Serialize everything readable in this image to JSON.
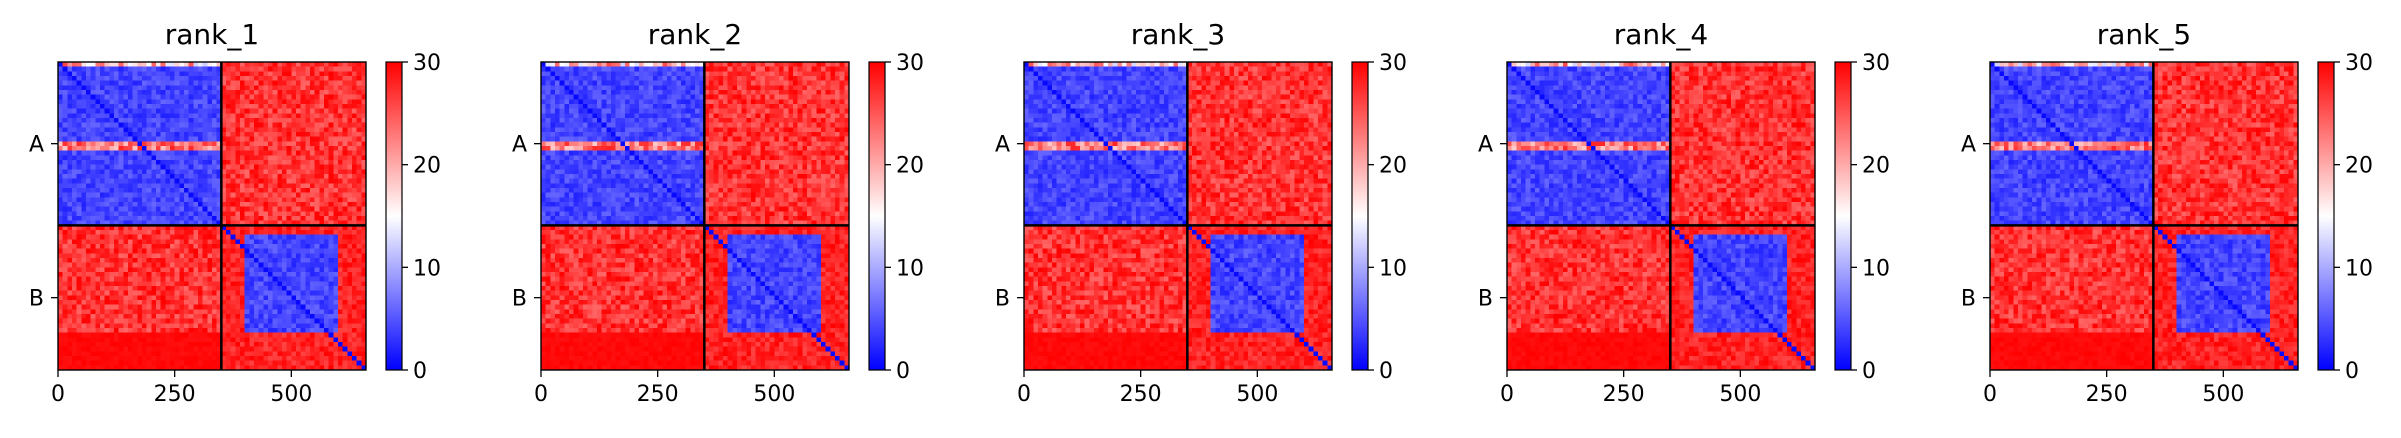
{
  "chart_data": [
    {
      "type": "heatmap",
      "title": "rank_1",
      "xlabel": "",
      "ylabel": "",
      "x_ticks": [
        0,
        250,
        500
      ],
      "xlim": [
        0,
        660
      ],
      "ylim": [
        660,
        0
      ],
      "y_tick_labels": [
        {
          "label": "A",
          "y": 175
        },
        {
          "label": "B",
          "y": 505
        }
      ],
      "chain_boundary": 350,
      "chain_A_length": 350,
      "chain_B_length": 310,
      "colorbar": {
        "min": 0,
        "max": 30,
        "ticks": [
          0,
          10,
          20,
          30
        ]
      },
      "blocks": [
        {
          "name": "A-A",
          "x": [
            0,
            350
          ],
          "y": [
            0,
            350
          ],
          "mean_value": 3,
          "note_value_high_rows": 30
        },
        {
          "name": "A-B",
          "x": [
            350,
            660
          ],
          "y": [
            0,
            350
          ],
          "mean_value": 29
        },
        {
          "name": "B-A",
          "x": [
            0,
            350
          ],
          "y": [
            350,
            660
          ],
          "mean_value": 29
        },
        {
          "name": "B-B",
          "x": [
            350,
            660
          ],
          "y": [
            350,
            660
          ],
          "mean_value": 28,
          "core_x": [
            400,
            600
          ],
          "core_y": [
            370,
            580
          ],
          "core_value": 3
        }
      ]
    },
    {
      "type": "heatmap",
      "title": "rank_2",
      "xlabel": "",
      "ylabel": "",
      "x_ticks": [
        0,
        250,
        500
      ],
      "xlim": [
        0,
        660
      ],
      "ylim": [
        660,
        0
      ],
      "y_tick_labels": [
        {
          "label": "A",
          "y": 175
        },
        {
          "label": "B",
          "y": 505
        }
      ],
      "chain_boundary": 350,
      "chain_A_length": 350,
      "chain_B_length": 310,
      "colorbar": {
        "min": 0,
        "max": 30,
        "ticks": [
          0,
          10,
          20,
          30
        ]
      },
      "blocks": [
        {
          "name": "A-A",
          "x": [
            0,
            350
          ],
          "y": [
            0,
            350
          ],
          "mean_value": 3,
          "note_value_high_rows": 30
        },
        {
          "name": "A-B",
          "x": [
            350,
            660
          ],
          "y": [
            0,
            350
          ],
          "mean_value": 29
        },
        {
          "name": "B-A",
          "x": [
            0,
            350
          ],
          "y": [
            350,
            660
          ],
          "mean_value": 29
        },
        {
          "name": "B-B",
          "x": [
            350,
            660
          ],
          "y": [
            350,
            660
          ],
          "mean_value": 28,
          "core_x": [
            400,
            600
          ],
          "core_y": [
            370,
            580
          ],
          "core_value": 3
        }
      ]
    },
    {
      "type": "heatmap",
      "title": "rank_3",
      "xlabel": "",
      "ylabel": "",
      "x_ticks": [
        0,
        250,
        500
      ],
      "xlim": [
        0,
        660
      ],
      "ylim": [
        660,
        0
      ],
      "y_tick_labels": [
        {
          "label": "A",
          "y": 175
        },
        {
          "label": "B",
          "y": 505
        }
      ],
      "chain_boundary": 350,
      "chain_A_length": 350,
      "chain_B_length": 310,
      "colorbar": {
        "min": 0,
        "max": 30,
        "ticks": [
          0,
          10,
          20,
          30
        ]
      },
      "blocks": [
        {
          "name": "A-A",
          "x": [
            0,
            350
          ],
          "y": [
            0,
            350
          ],
          "mean_value": 3,
          "note_value_high_rows": 30
        },
        {
          "name": "A-B",
          "x": [
            350,
            660
          ],
          "y": [
            0,
            350
          ],
          "mean_value": 29
        },
        {
          "name": "B-A",
          "x": [
            0,
            350
          ],
          "y": [
            350,
            660
          ],
          "mean_value": 29
        },
        {
          "name": "B-B",
          "x": [
            350,
            660
          ],
          "y": [
            350,
            660
          ],
          "mean_value": 28,
          "core_x": [
            400,
            600
          ],
          "core_y": [
            370,
            580
          ],
          "core_value": 3
        }
      ]
    },
    {
      "type": "heatmap",
      "title": "rank_4",
      "xlabel": "",
      "ylabel": "",
      "x_ticks": [
        0,
        250,
        500
      ],
      "xlim": [
        0,
        660
      ],
      "ylim": [
        660,
        0
      ],
      "y_tick_labels": [
        {
          "label": "A",
          "y": 175
        },
        {
          "label": "B",
          "y": 505
        }
      ],
      "chain_boundary": 350,
      "chain_A_length": 350,
      "chain_B_length": 310,
      "colorbar": {
        "min": 0,
        "max": 30,
        "ticks": [
          0,
          10,
          20,
          30
        ]
      },
      "blocks": [
        {
          "name": "A-A",
          "x": [
            0,
            350
          ],
          "y": [
            0,
            350
          ],
          "mean_value": 3,
          "note_value_high_rows": 30
        },
        {
          "name": "A-B",
          "x": [
            350,
            660
          ],
          "y": [
            0,
            350
          ],
          "mean_value": 29
        },
        {
          "name": "B-A",
          "x": [
            0,
            350
          ],
          "y": [
            350,
            660
          ],
          "mean_value": 29
        },
        {
          "name": "B-B",
          "x": [
            350,
            660
          ],
          "y": [
            350,
            660
          ],
          "mean_value": 28,
          "core_x": [
            400,
            600
          ],
          "core_y": [
            370,
            580
          ],
          "core_value": 3
        }
      ]
    },
    {
      "type": "heatmap",
      "title": "rank_5",
      "xlabel": "",
      "ylabel": "",
      "x_ticks": [
        0,
        250,
        500
      ],
      "xlim": [
        0,
        660
      ],
      "ylim": [
        660,
        0
      ],
      "y_tick_labels": [
        {
          "label": "A",
          "y": 175
        },
        {
          "label": "B",
          "y": 505
        }
      ],
      "chain_boundary": 350,
      "chain_A_length": 350,
      "chain_B_length": 310,
      "colorbar": {
        "min": 0,
        "max": 30,
        "ticks": [
          0,
          10,
          20,
          30
        ]
      },
      "blocks": [
        {
          "name": "A-A",
          "x": [
            0,
            350
          ],
          "y": [
            0,
            350
          ],
          "mean_value": 3,
          "note_value_high_rows": 30
        },
        {
          "name": "A-B",
          "x": [
            350,
            660
          ],
          "y": [
            0,
            350
          ],
          "mean_value": 29
        },
        {
          "name": "B-A",
          "x": [
            0,
            350
          ],
          "y": [
            350,
            660
          ],
          "mean_value": 29
        },
        {
          "name": "B-B",
          "x": [
            350,
            660
          ],
          "y": [
            350,
            660
          ],
          "mean_value": 28,
          "core_x": [
            400,
            600
          ],
          "core_y": [
            370,
            580
          ],
          "core_value": 3
        }
      ]
    }
  ],
  "colors": {
    "low": "#0000ff",
    "mid": "#ffffff",
    "high": "#ff0000",
    "frame": "#000000",
    "divider": "#000000"
  }
}
